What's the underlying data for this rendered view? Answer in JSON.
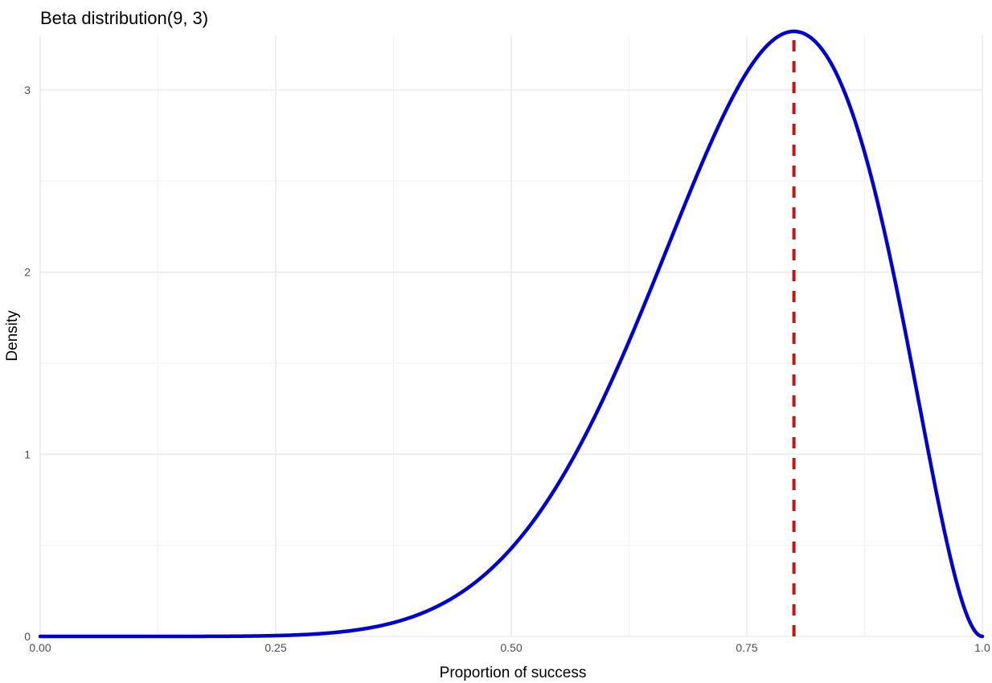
{
  "chart_data": {
    "type": "line",
    "title": "Beta distribution(9, 3)",
    "xlabel": "Proportion of success",
    "ylabel": "Density",
    "xlim": [
      0,
      1
    ],
    "ylim": [
      0,
      3.3
    ],
    "x_ticks": [
      0,
      0.25,
      0.5,
      0.75,
      1
    ],
    "x_tick_labels": [
      "0.00",
      "0.25",
      "0.50",
      "0.75",
      "1.0"
    ],
    "y_ticks": [
      0,
      1,
      2,
      3
    ],
    "y_tick_labels": [
      "0",
      "1",
      "2",
      "3"
    ],
    "grid": true,
    "distribution": {
      "name": "Beta",
      "alpha": 9,
      "beta": 3
    },
    "series": [
      {
        "color": "#0000d4",
        "x": [
          0,
          0.05,
          0.1,
          0.15,
          0.2,
          0.25,
          0.3,
          0.35,
          0.4,
          0.45,
          0.5,
          0.55,
          0.6,
          0.65,
          0.7,
          0.75,
          0.8,
          0.85,
          0.9,
          0.95,
          1
        ],
        "y": [
          0,
          0,
          0,
          0,
          0.0006,
          0.0029,
          0.0111,
          0.0337,
          0.0865,
          0.1936,
          0.3867,
          0.703,
          1.1823,
          1.8618,
          2.7147,
          3.1314,
          3.3554,
          3.1003,
          2.3914,
          1.1572,
          0
        ]
      }
    ],
    "reference_line": {
      "x": 0.8,
      "color": "#cc1111",
      "style": "dashed"
    }
  }
}
